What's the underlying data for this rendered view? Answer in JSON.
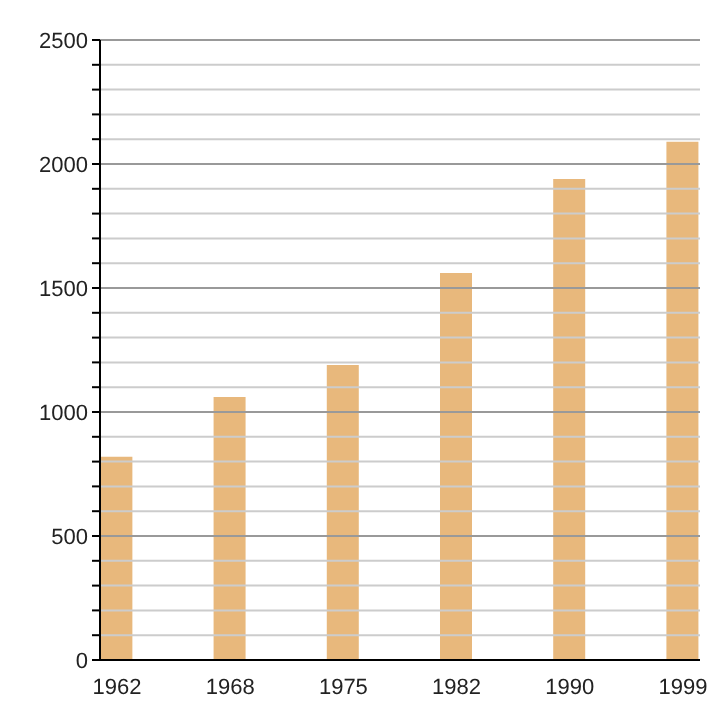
{
  "chart_data": {
    "type": "bar",
    "categories": [
      "1962",
      "1968",
      "1975",
      "1982",
      "1990",
      "1999"
    ],
    "values": [
      820,
      1060,
      1190,
      1560,
      1940,
      2090
    ],
    "color": "#e8b87c",
    "ylim": [
      0,
      2500
    ],
    "yticks": [
      0,
      {
        "value": 100,
        "label": null
      },
      {
        "value": 200,
        "label": null
      },
      {
        "value": 300,
        "label": null
      },
      {
        "value": 400,
        "label": null
      },
      500,
      {
        "value": 600,
        "label": null
      },
      {
        "value": 700,
        "label": null
      },
      {
        "value": 800,
        "label": null
      },
      {
        "value": 900,
        "label": null
      },
      1000,
      {
        "value": 1100,
        "label": null
      },
      {
        "value": 1200,
        "label": null
      },
      {
        "value": 1300,
        "label": null
      },
      {
        "value": 1400,
        "label": null
      },
      1500,
      {
        "value": 1600,
        "label": null
      },
      {
        "value": 1700,
        "label": null
      },
      {
        "value": 1800,
        "label": null
      },
      {
        "value": 1900,
        "label": null
      },
      2000,
      {
        "value": 2100,
        "label": null
      },
      {
        "value": 2200,
        "label": null
      },
      {
        "value": 2300,
        "label": null
      },
      {
        "value": 2400,
        "label": null
      },
      2500
    ],
    "grid": "y"
  }
}
